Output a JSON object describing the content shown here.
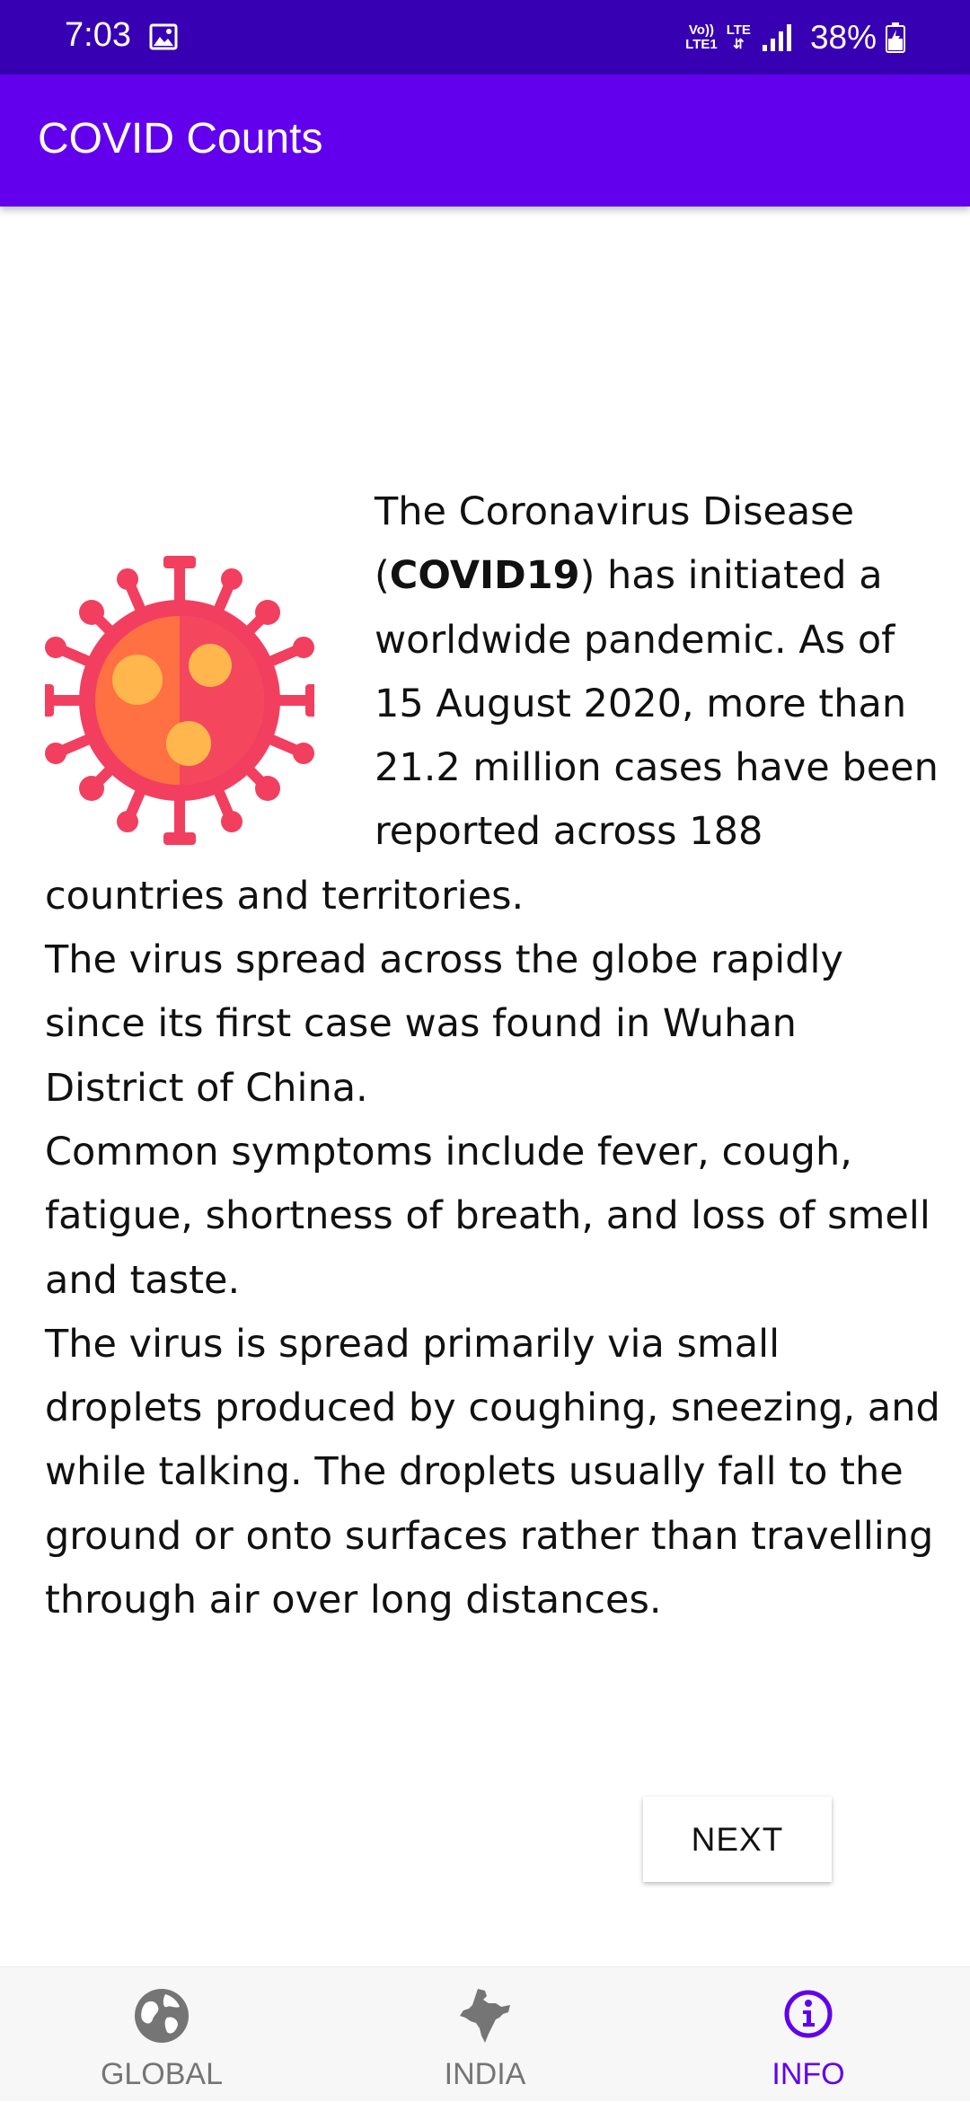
{
  "status_bar": {
    "time": "7:03",
    "volte": "Vo))\nLTE1",
    "network": "LTE",
    "battery": "38%"
  },
  "app_bar": {
    "title": "COVID Counts"
  },
  "content": {
    "intro_before": "The Coronavirus Disease (",
    "intro_bold": "COVID19",
    "intro_after": ") has initiated a worldwide pandemic. As of 15 August 2020, more than 21.2 million cases have been reported across 188 countries and territories.",
    "paragraph_2": "The virus spread across the globe rapidly since its first case was found in Wuhan District of China.",
    "paragraph_3": "Common symptoms include fever, cough, fatigue, shortness of breath, and loss of smell and taste.",
    "paragraph_4": "The virus is spread primarily via small droplets produced by coughing, sneezing, and while talking. The droplets usually fall to the ground or onto surfaces rather than travelling through air over long distances."
  },
  "actions": {
    "next_label": "NEXT"
  },
  "bottom_nav": {
    "items": [
      {
        "label": "GLOBAL",
        "icon": "globe-icon"
      },
      {
        "label": "INDIA",
        "icon": "india-map-icon"
      },
      {
        "label": "INFO",
        "icon": "info-icon",
        "active": true
      }
    ]
  },
  "colors": {
    "status_bar": "#3700b3",
    "primary": "#6200ee",
    "virus_outer": "#f23f5f",
    "virus_inner": "#ff7043"
  }
}
